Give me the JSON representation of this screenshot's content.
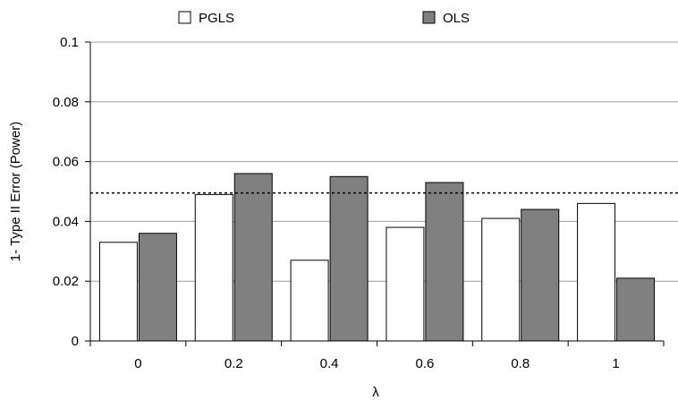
{
  "chart_data": {
    "type": "bar",
    "title": "",
    "xlabel": "λ",
    "ylabel": "1- Type II Error (Power)",
    "categories": [
      "0",
      "0.2",
      "0.4",
      "0.6",
      "0.8",
      "1"
    ],
    "series": [
      {
        "name": "PGLS",
        "values": [
          0.033,
          0.049,
          0.027,
          0.038,
          0.041,
          0.046
        ],
        "color": "#ffffff"
      },
      {
        "name": "OLS",
        "values": [
          0.036,
          0.056,
          0.055,
          0.053,
          0.044,
          0.021
        ],
        "color": "#808080"
      }
    ],
    "ylim": [
      0,
      0.1
    ],
    "yticks": [
      0,
      0.02,
      0.04,
      0.06,
      0.08,
      0.1
    ],
    "ytick_labels": [
      "0",
      "0.02",
      "0.04",
      "0.06",
      "0.08",
      "0.1"
    ],
    "reference_line": {
      "y": 0.0495,
      "style": "dotted"
    },
    "grid": true,
    "legend_position": "top"
  }
}
